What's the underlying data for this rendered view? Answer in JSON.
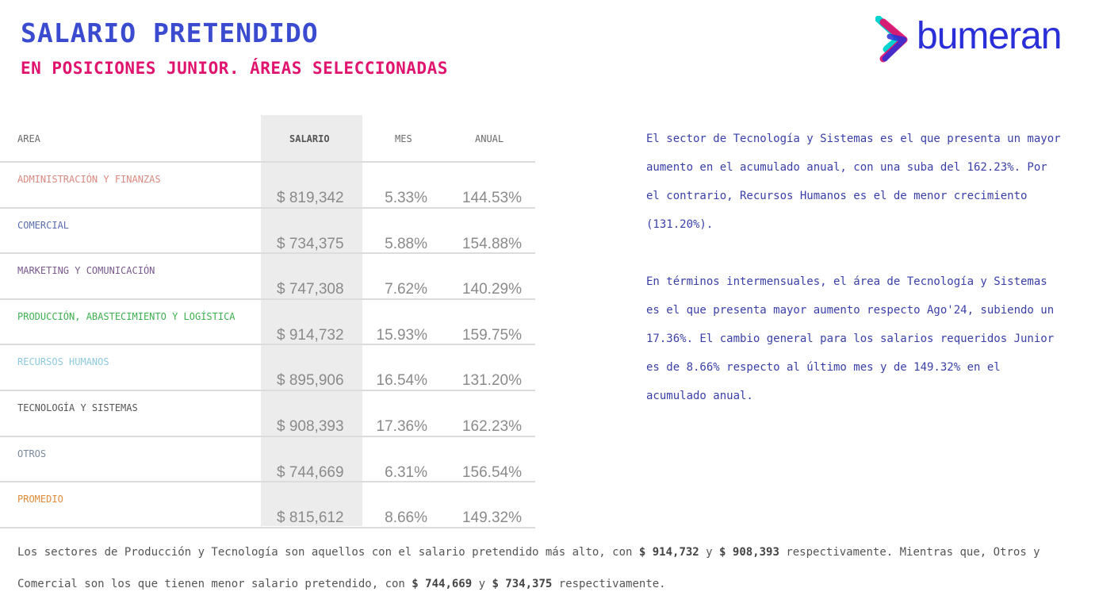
{
  "header": {
    "title": "SALARIO PRETENDIDO",
    "subtitle": "EN POSICIONES JUNIOR. ÁREAS SELECCIONADAS"
  },
  "logo": {
    "text": "bumeran",
    "mark_colors": [
      "#00d3d0",
      "#e0136f",
      "#2a2fd8"
    ]
  },
  "table": {
    "columns": {
      "area": "AREA",
      "salario": "SALARIO",
      "mes": "MES",
      "anual": "ANUAL"
    },
    "rows": [
      {
        "area": "ADMINISTRACIÓN Y FINANZAS",
        "color": "#d98a80",
        "salario": "$ 819,342",
        "mes": "5.33%",
        "anual": "144.53%"
      },
      {
        "area": "COMERCIAL",
        "color": "#5b6fb0",
        "salario": "$ 734,375",
        "mes": "5.88%",
        "anual": "154.88%"
      },
      {
        "area": "MARKETING Y COMUNICACIÓN",
        "color": "#7a5a8c",
        "salario": "$ 747,308",
        "mes": "7.62%",
        "anual": "140.29%"
      },
      {
        "area": "PRODUCCIÓN, ABASTECIMIENTO Y LOGÍSTICA",
        "color": "#3fb04f",
        "salario": "$ 914,732",
        "mes": "15.93%",
        "anual": "159.75%"
      },
      {
        "area": "RECURSOS HUMANOS",
        "color": "#8ec9dd",
        "salario": "$ 895,906",
        "mes": "16.54%",
        "anual": "131.20%"
      },
      {
        "area": "TECNOLOGÍA Y SISTEMAS",
        "color": "#555555",
        "salario": "$ 908,393",
        "mes": "17.36%",
        "anual": "162.23%"
      },
      {
        "area": "OTROS",
        "color": "#7a8a9c",
        "salario": "$ 744,669",
        "mes": "6.31%",
        "anual": "156.54%"
      },
      {
        "area": "PROMEDIO",
        "color": "#e08a3a",
        "salario": "$ 815,612",
        "mes": "8.66%",
        "anual": "149.32%"
      }
    ]
  },
  "side_notes": [
    "El sector de Tecnología y Sistemas es el que presenta un mayor aumento en el acumulado anual, con una suba del 162.23%. Por el contrario, Recursos Humanos es el de menor crecimiento (131.20%).",
    "En términos intermensuales, el área de Tecnología y Sistemas es el que presenta mayor aumento respecto Ago'24, subiendo un 17.36%. El cambio general para los salarios requeridos Junior es de 8.66% respecto al último mes y de 149.32% en el acumulado anual."
  ],
  "footer": {
    "p1": "Los sectores de Producción y Tecnología son aquellos con el salario pretendido más alto, con ",
    "v1": "$ 914,732",
    "p2": " y ",
    "v2": "$ 908,393",
    "p3": " respectivamente. Mientras que, Otros y Comercial son los que tienen menor salario pretendido, con ",
    "v3": "$ 744,669",
    "p4": " y ",
    "v4": "$ 734,375",
    "p5": " respectivamente."
  }
}
